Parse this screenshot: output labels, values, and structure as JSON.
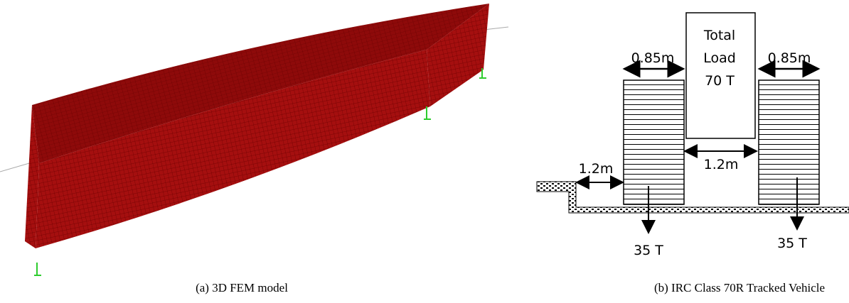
{
  "panel_a": {
    "caption": "(a) 3D FEM model"
  },
  "panel_b": {
    "caption": "(b) IRC Class 70R Tracked Vehicle",
    "load_box": [
      "Total",
      "Load",
      "70 T"
    ],
    "track_width_left": "0.85m",
    "track_width_right": "0.85m",
    "kerb_clearance": "1.2m",
    "track_spacing": "1.2m",
    "load_left": "35 T",
    "load_right": "35 T"
  }
}
